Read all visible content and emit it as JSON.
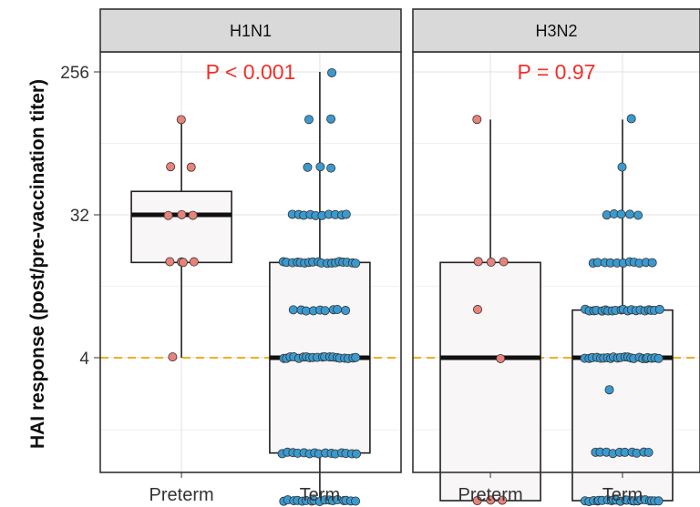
{
  "chart_data": {
    "type": "box",
    "ylabel": "HAI response (post/pre-vaccination titer)",
    "y_scale": "log2",
    "ylim": [
      0.6,
      400
    ],
    "y_ticks": [
      4,
      32,
      256
    ],
    "y_tick_labels": [
      "4",
      "32",
      "256"
    ],
    "reference_line": {
      "y": 4,
      "color": "#F0B020",
      "style": "dashed"
    },
    "categories": [
      "Preterm",
      "Term"
    ],
    "colors": {
      "Preterm": "#E8827A",
      "Term": "#3A9AD0",
      "p_value": "#F0302A"
    },
    "panels": [
      {
        "title": "H1N1",
        "p_label": "P < 0.001",
        "boxes": [
          {
            "group": "Preterm",
            "q1": 16,
            "median": 32,
            "q3": 45,
            "whisker_low": 4,
            "whisker_high": 128
          },
          {
            "group": "Term",
            "q1": 1,
            "median": 4,
            "q3": 16,
            "whisker_low": 0.5,
            "whisker_high": 256
          }
        ],
        "points": {
          "Preterm": [
            [
              128,
              1
            ],
            [
              64,
              2
            ],
            [
              32,
              3
            ],
            [
              16,
              3
            ],
            [
              16,
              1
            ],
            [
              4,
              1
            ]
          ],
          "Term": [
            [
              256,
              1
            ],
            [
              128,
              2
            ],
            [
              64,
              3
            ],
            [
              32,
              10
            ],
            [
              16,
              18
            ],
            [
              8,
              9
            ],
            [
              4,
              20
            ],
            [
              1,
              15
            ],
            [
              0.5,
              17
            ]
          ]
        }
      },
      {
        "title": "H3N2",
        "p_label": "P = 0.97",
        "boxes": [
          {
            "group": "Preterm",
            "q1": 0.5,
            "median": 4,
            "q3": 16,
            "whisker_low": 0.5,
            "whisker_high": 128
          },
          {
            "group": "Term",
            "q1": 0.5,
            "median": 4,
            "q3": 8,
            "whisker_low": 0.5,
            "whisker_high": 128
          }
        ],
        "points": {
          "Preterm": [
            [
              128,
              1
            ],
            [
              16,
              3
            ],
            [
              8,
              1
            ],
            [
              4,
              1
            ],
            [
              0.5,
              3
            ]
          ],
          "Term": [
            [
              128,
              1
            ],
            [
              64,
              1
            ],
            [
              32,
              5
            ],
            [
              16,
              11
            ],
            [
              8,
              20
            ],
            [
              4,
              22
            ],
            [
              2.5,
              1
            ],
            [
              1,
              10
            ],
            [
              0.5,
              22
            ]
          ]
        }
      }
    ]
  }
}
